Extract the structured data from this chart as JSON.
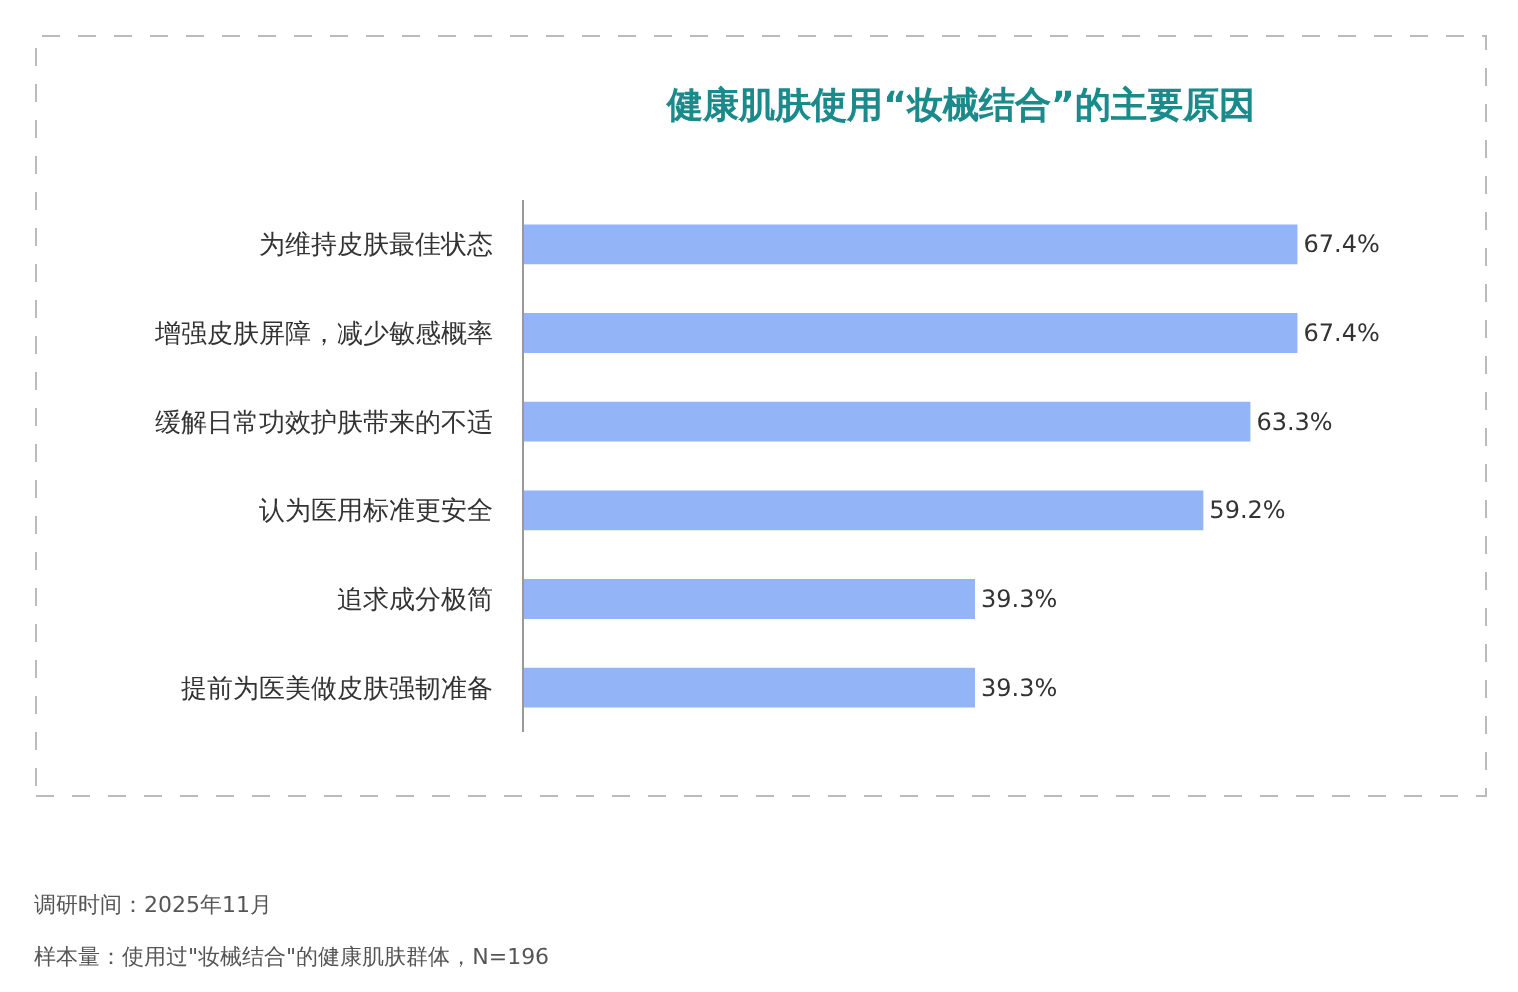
{
  "chart_data": {
    "type": "bar",
    "orientation": "horizontal",
    "title": "健康肌肤使用“妆械结合”的主要原因",
    "categories": [
      "为维持皮肤最佳状态",
      "增强皮肤屏障，减少敏感概率",
      "缓解日常功效护肤带来的不适",
      "认为医用标准更安全",
      "追求成分极简",
      "提前为医美做皮肤强韧准备"
    ],
    "values": [
      67.4,
      67.4,
      63.3,
      59.2,
      39.3,
      39.3
    ],
    "value_labels": [
      "67.4%",
      "67.4%",
      "63.3%",
      "59.2%",
      "39.3%",
      "39.3%"
    ],
    "color": "#94b4f8",
    "annotations": [
      "调研时间：2025年11月",
      "样本量：使用过\"妆械结合\"的健康肌肤群体，N=196"
    ]
  }
}
